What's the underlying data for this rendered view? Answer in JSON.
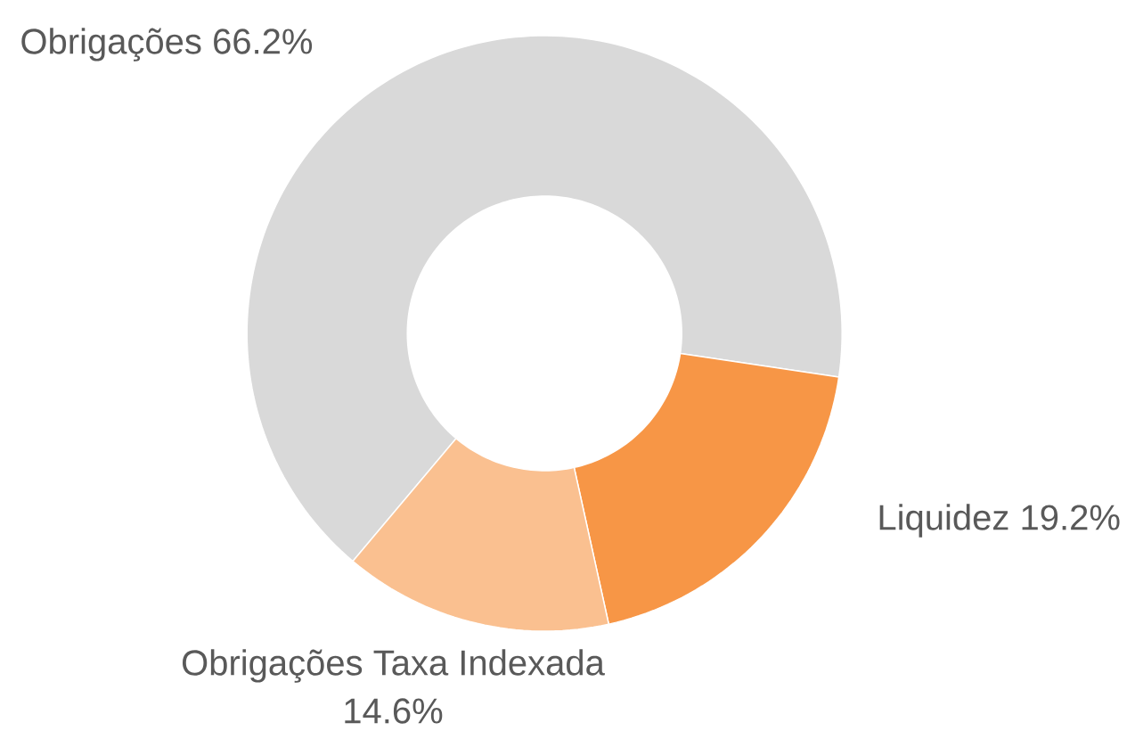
{
  "chart_data": {
    "type": "donut",
    "categories": [
      "Obrigações",
      "Liquidez",
      "Obrigações Taxa Indexada"
    ],
    "values": [
      66.2,
      19.2,
      14.6
    ],
    "value_labels": [
      "66.2%",
      "19.2%",
      "14.6%"
    ],
    "colors": [
      "#d9d9d9",
      "#f79646",
      "#fac090"
    ]
  }
}
